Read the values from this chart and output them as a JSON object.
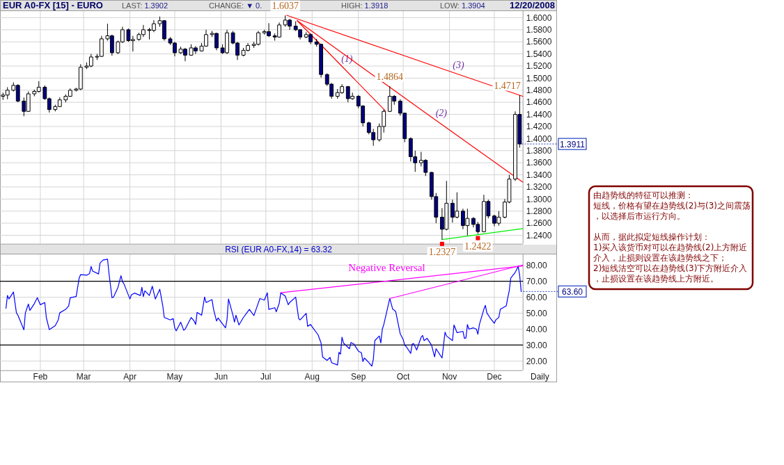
{
  "chart_data": [
    {
      "type": "candlestick",
      "title": "EUR A0-FX [15] - EURO",
      "annotations": [
        "LAST: 1.3902",
        "CHANGE: ▼ 0.",
        "HIGH: 1.3918",
        "LOW: 1.3904",
        "12/20/2008",
        {
          "text": "1.6037",
          "x": "2008-07-14",
          "y": 1.6037
        },
        {
          "text": "1.4864",
          "x": "2008-09-22",
          "y": 1.4864
        },
        {
          "text": "1.4717",
          "x": "2008-12-18",
          "y": 1.4717
        },
        {
          "text": "1.2327",
          "x": "2008-10-27",
          "y": 1.2327
        },
        {
          "text": "1.2422",
          "x": "2008-11-20",
          "y": 1.2422
        },
        {
          "text": "1.3911",
          "x": "2008-12-18",
          "y": 1.3911
        }
      ],
      "series": [
        {
          "type": "candlestick",
          "colors": [
            "#ffffff",
            "#ffffff",
            "#ffffff",
            "#000080",
            "#000080",
            "#ffffff",
            "#ffffff",
            "#ffffff",
            "#000080",
            "#000080",
            "#ffffff",
            "#ffffff",
            "#ffffff",
            "#ffffff",
            "#ffffff",
            "#ffffff",
            "#ffffff",
            "#ffffff",
            "#ffffff",
            "#ffffff",
            "#ffffff",
            "#000080",
            "#ffffff",
            "#ffffff",
            "#000080",
            "#ffffff",
            "#ffffff",
            "#ffffff",
            "#000080",
            "#ffffff",
            "#ffffff",
            "#000080",
            "#000080",
            "#000080",
            "#ffffff",
            "#000080",
            "#ffffff",
            "#000080",
            "#ffffff",
            "#ffffff",
            "#ffffff",
            "#000080",
            "#000080",
            "#ffffff",
            "#000080",
            "#000080",
            "#ffffff",
            "#ffffff",
            "#ffffff",
            "#ffffff",
            "#ffffff",
            "#000080",
            "#000080",
            "#ffffff",
            "#ffffff",
            "#000080",
            "#000080",
            "#000080",
            "#ffffff",
            "#000080",
            "#000080",
            "#000080",
            "#000080",
            "#000080",
            "#ffffff",
            "#ffffff",
            "#000080",
            "#ffffff",
            "#000080",
            "#000080",
            "#000080",
            "#000080",
            "#ffffff",
            "#ffffff",
            "#ffffff",
            "#000080",
            "#000080",
            "#000080",
            "#000080",
            "#000080",
            "#ffffff",
            "#000080",
            "#000080",
            "#000080",
            "#000080",
            "#ffffff",
            "#000080",
            "#ffffff",
            "#000080",
            "#ffffff",
            "#000080",
            "#000080",
            "#ffffff",
            "#000080",
            "#000080",
            "#ffffff",
            "#ffffff",
            "#ffffff",
            "#ffffff",
            "#000080"
          ],
          "x": [
            "2008-01-07",
            "2008-01-10",
            "2008-01-14",
            "2008-01-17",
            "2008-01-21",
            "2008-01-24",
            "2008-01-28",
            "2008-01-31",
            "2008-02-04",
            "2008-02-07",
            "2008-02-11",
            "2008-02-14",
            "2008-02-18",
            "2008-02-21",
            "2008-02-25",
            "2008-02-28",
            "2008-03-03",
            "2008-03-06",
            "2008-03-10",
            "2008-03-13",
            "2008-03-17",
            "2008-03-20",
            "2008-03-24",
            "2008-03-27",
            "2008-03-31",
            "2008-04-03",
            "2008-04-07",
            "2008-04-10",
            "2008-04-14",
            "2008-04-17",
            "2008-04-21",
            "2008-04-24",
            "2008-04-28",
            "2008-05-01",
            "2008-05-05",
            "2008-05-08",
            "2008-05-12",
            "2008-05-15",
            "2008-05-19",
            "2008-05-22",
            "2008-05-26",
            "2008-05-29",
            "2008-06-02",
            "2008-06-05",
            "2008-06-09",
            "2008-06-12",
            "2008-06-16",
            "2008-06-19",
            "2008-06-23",
            "2008-06-26",
            "2008-06-30",
            "2008-07-03",
            "2008-07-07",
            "2008-07-10",
            "2008-07-14",
            "2008-07-17",
            "2008-07-21",
            "2008-07-24",
            "2008-07-28",
            "2008-07-31",
            "2008-08-04",
            "2008-08-07",
            "2008-08-11",
            "2008-08-14",
            "2008-08-18",
            "2008-08-21",
            "2008-08-25",
            "2008-08-28",
            "2008-09-01",
            "2008-09-04",
            "2008-09-08",
            "2008-09-11",
            "2008-09-15",
            "2008-09-18",
            "2008-09-22",
            "2008-09-25",
            "2008-09-29",
            "2008-10-02",
            "2008-10-06",
            "2008-10-09",
            "2008-10-13",
            "2008-10-16",
            "2008-10-20",
            "2008-10-23",
            "2008-10-27",
            "2008-10-30",
            "2008-11-03",
            "2008-11-06",
            "2008-11-10",
            "2008-11-13",
            "2008-11-17",
            "2008-11-20",
            "2008-11-24",
            "2008-11-27",
            "2008-12-01",
            "2008-12-04",
            "2008-12-08",
            "2008-12-11",
            "2008-12-15",
            "2008-12-18"
          ],
          "ohlc": [
            [
              1.47,
              1.476,
              1.464,
              1.472
            ],
            [
              1.472,
              1.485,
              1.465,
              1.48
            ],
            [
              1.48,
              1.493,
              1.478,
              1.488
            ],
            [
              1.488,
              1.49,
              1.46,
              1.462
            ],
            [
              1.462,
              1.468,
              1.437,
              1.445
            ],
            [
              1.445,
              1.478,
              1.444,
              1.474
            ],
            [
              1.474,
              1.481,
              1.47,
              1.478
            ],
            [
              1.478,
              1.495,
              1.476,
              1.485
            ],
            [
              1.485,
              1.488,
              1.464,
              1.466
            ],
            [
              1.466,
              1.468,
              1.443,
              1.448
            ],
            [
              1.448,
              1.456,
              1.445,
              1.453
            ],
            [
              1.453,
              1.468,
              1.452,
              1.464
            ],
            [
              1.464,
              1.473,
              1.46,
              1.47
            ],
            [
              1.47,
              1.483,
              1.469,
              1.48
            ],
            [
              1.48,
              1.484,
              1.478,
              1.482
            ],
            [
              1.482,
              1.523,
              1.48,
              1.518
            ],
            [
              1.518,
              1.526,
              1.515,
              1.52
            ],
            [
              1.52,
              1.54,
              1.518,
              1.535
            ],
            [
              1.535,
              1.54,
              1.53,
              1.536
            ],
            [
              1.536,
              1.57,
              1.535,
              1.565
            ],
            [
              1.565,
              1.59,
              1.562,
              1.57
            ],
            [
              1.57,
              1.572,
              1.537,
              1.542
            ],
            [
              1.542,
              1.562,
              1.54,
              1.56
            ],
            [
              1.56,
              1.585,
              1.558,
              1.58
            ],
            [
              1.58,
              1.582,
              1.56,
              1.562
            ],
            [
              1.562,
              1.57,
              1.544,
              1.564
            ],
            [
              1.564,
              1.575,
              1.562,
              1.572
            ],
            [
              1.572,
              1.588,
              1.568,
              1.58
            ],
            [
              1.58,
              1.583,
              1.564,
              1.579
            ],
            [
              1.579,
              1.596,
              1.576,
              1.59
            ],
            [
              1.59,
              1.6019,
              1.585,
              1.595
            ],
            [
              1.595,
              1.596,
              1.562,
              1.565
            ],
            [
              1.565,
              1.568,
              1.555,
              1.558
            ],
            [
              1.558,
              1.56,
              1.536,
              1.542
            ],
            [
              1.542,
              1.552,
              1.54,
              1.548
            ],
            [
              1.548,
              1.55,
              1.528,
              1.538
            ],
            [
              1.538,
              1.556,
              1.537,
              1.55
            ],
            [
              1.55,
              1.553,
              1.54,
              1.545
            ],
            [
              1.545,
              1.558,
              1.544,
              1.553
            ],
            [
              1.553,
              1.58,
              1.552,
              1.572
            ],
            [
              1.572,
              1.578,
              1.568,
              1.574
            ],
            [
              1.574,
              1.575,
              1.546,
              1.55
            ],
            [
              1.55,
              1.556,
              1.54,
              1.542
            ],
            [
              1.542,
              1.58,
              1.54,
              1.575
            ],
            [
              1.575,
              1.578,
              1.556,
              1.558
            ],
            [
              1.558,
              1.56,
              1.53,
              1.538
            ],
            [
              1.538,
              1.55,
              1.536,
              1.546
            ],
            [
              1.546,
              1.558,
              1.544,
              1.554
            ],
            [
              1.554,
              1.56,
              1.55,
              1.556
            ],
            [
              1.556,
              1.578,
              1.554,
              1.575
            ],
            [
              1.575,
              1.58,
              1.572,
              1.577
            ],
            [
              1.577,
              1.591,
              1.568,
              1.57
            ],
            [
              1.57,
              1.574,
              1.562,
              1.568
            ],
            [
              1.568,
              1.592,
              1.567,
              1.588
            ],
            [
              1.588,
              1.6037,
              1.585,
              1.596
            ],
            [
              1.596,
              1.598,
              1.58,
              1.586
            ],
            [
              1.586,
              1.594,
              1.578,
              1.58
            ],
            [
              1.58,
              1.581,
              1.564,
              1.568
            ],
            [
              1.568,
              1.576,
              1.566,
              1.572
            ],
            [
              1.572,
              1.574,
              1.556,
              1.56
            ],
            [
              1.56,
              1.565,
              1.552,
              1.556
            ],
            [
              1.556,
              1.557,
              1.501,
              1.506
            ],
            [
              1.506,
              1.508,
              1.487,
              1.49
            ],
            [
              1.49,
              1.492,
              1.466,
              1.47
            ],
            [
              1.47,
              1.482,
              1.466,
              1.476
            ],
            [
              1.476,
              1.49,
              1.474,
              1.486
            ],
            [
              1.486,
              1.487,
              1.46,
              1.466
            ],
            [
              1.466,
              1.476,
              1.464,
              1.47
            ],
            [
              1.47,
              1.472,
              1.45,
              1.454
            ],
            [
              1.454,
              1.455,
              1.42,
              1.426
            ],
            [
              1.426,
              1.428,
              1.407,
              1.41
            ],
            [
              1.41,
              1.416,
              1.388,
              1.398
            ],
            [
              1.398,
              1.425,
              1.395,
              1.42
            ],
            [
              1.42,
              1.448,
              1.41,
              1.445
            ],
            [
              1.445,
              1.4864,
              1.444,
              1.47
            ],
            [
              1.47,
              1.472,
              1.456,
              1.462
            ],
            [
              1.462,
              1.465,
              1.438,
              1.442
            ],
            [
              1.442,
              1.443,
              1.394,
              1.4
            ],
            [
              1.4,
              1.402,
              1.362,
              1.37
            ],
            [
              1.37,
              1.38,
              1.345,
              1.36
            ],
            [
              1.36,
              1.378,
              1.354,
              1.364
            ],
            [
              1.364,
              1.366,
              1.338,
              1.344
            ],
            [
              1.344,
              1.345,
              1.299,
              1.304
            ],
            [
              1.304,
              1.31,
              1.26,
              1.27
            ],
            [
              1.27,
              1.285,
              1.2327,
              1.25
            ],
            [
              1.25,
              1.33,
              1.248,
              1.293
            ],
            [
              1.293,
              1.299,
              1.261,
              1.27
            ],
            [
              1.27,
              1.311,
              1.268,
              1.28
            ],
            [
              1.28,
              1.284,
              1.25,
              1.256
            ],
            [
              1.256,
              1.284,
              1.24,
              1.268
            ],
            [
              1.268,
              1.27,
              1.253,
              1.258
            ],
            [
              1.258,
              1.262,
              1.2422,
              1.246
            ],
            [
              1.246,
              1.307,
              1.245,
              1.296
            ],
            [
              1.296,
              1.299,
              1.268,
              1.272
            ],
            [
              1.272,
              1.274,
              1.255,
              1.26
            ],
            [
              1.26,
              1.28,
              1.256,
              1.27
            ],
            [
              1.27,
              1.3,
              1.268,
              1.295
            ],
            [
              1.295,
              1.34,
              1.293,
              1.333
            ],
            [
              1.333,
              1.445,
              1.33,
              1.44
            ],
            [
              1.44,
              1.4717,
              1.385,
              1.3911
            ]
          ]
        },
        {
          "type": "line",
          "name": "(1)",
          "color": "#ff0000",
          "x": [
            "2008-07-22",
            "2008-08-20",
            "2008-09-19"
          ],
          "values": [
            1.595,
            1.522,
            1.446
          ]
        },
        {
          "type": "line",
          "name": "(2)",
          "color": "#ff0000",
          "x": [
            "2008-07-22",
            "2008-10-23",
            "2008-12-20"
          ],
          "values": [
            1.595,
            1.43,
            1.328
          ]
        },
        {
          "type": "line",
          "name": "(3)",
          "color": "#ff0000",
          "x": [
            "2008-07-15",
            "2008-11-05",
            "2008-12-20"
          ],
          "values": [
            1.604,
            1.508,
            1.47
          ]
        },
        {
          "type": "line",
          "color": "#00ee00",
          "x": [
            "2008-10-27",
            "2008-12-20"
          ],
          "values": [
            1.233,
            1.251
          ]
        }
      ],
      "xlim": [
        "2008-01-05",
        "2008-12-20"
      ],
      "ylim": [
        1.226,
        1.612
      ],
      "xticks": [
        {
          "value": "2008-02-01",
          "label": null
        },
        {
          "value": "2008-03-01",
          "label": null
        },
        {
          "value": "2008-04-01",
          "label": null
        },
        {
          "value": "2008-05-01",
          "label": null
        },
        {
          "value": "2008-06-01",
          "label": null
        },
        {
          "value": "2008-07-01",
          "label": null
        },
        {
          "value": "2008-08-01",
          "label": null
        },
        {
          "value": "2008-09-01",
          "label": null
        },
        {
          "value": "2008-10-01",
          "label": null
        },
        {
          "value": "2008-11-01",
          "label": null
        },
        {
          "value": "2008-12-01",
          "label": null
        }
      ],
      "yticks": [
        {
          "value": 1.24,
          "label": "1.2400"
        },
        {
          "value": 1.26,
          "label": "1.2600"
        },
        {
          "value": 1.28,
          "label": "1.2800"
        },
        {
          "value": 1.3,
          "label": "1.3000"
        },
        {
          "value": 1.32,
          "label": "1.3200"
        },
        {
          "value": 1.34,
          "label": "1.3400"
        },
        {
          "value": 1.36,
          "label": "1.3600"
        },
        {
          "value": 1.38,
          "label": "1.3800"
        },
        {
          "value": 1.4,
          "label": "1.4000"
        },
        {
          "value": 1.42,
          "label": "1.4200"
        },
        {
          "value": 1.44,
          "label": "1.4400"
        },
        {
          "value": 1.46,
          "label": "1.4600"
        },
        {
          "value": 1.48,
          "label": "1.4800"
        },
        {
          "value": 1.5,
          "label": "1.5000"
        },
        {
          "value": 1.52,
          "label": "1.5200"
        },
        {
          "value": 1.54,
          "label": "1.5400"
        },
        {
          "value": 1.56,
          "label": "1.5600"
        },
        {
          "value": 1.58,
          "label": "1.5800"
        },
        {
          "value": 1.6,
          "label": "1.6000"
        }
      ],
      "grid": true,
      "tick_labels": "y"
    },
    {
      "type": "line",
      "title": "RSI (EUR A0-FX,14) = 63.32",
      "xlabel": "Daily",
      "series": [
        {
          "color": "#000000",
          "x": [
            "2008-01-05",
            "2008-12-20"
          ],
          "values": [
            70,
            70
          ]
        },
        {
          "color": "#000000",
          "x": [
            "2008-01-05",
            "2008-12-20"
          ],
          "values": [
            30,
            30
          ]
        },
        {
          "color": "#0000ff",
          "x": [
            "2008-01-09",
            "2008-01-10",
            "2008-01-11",
            "2008-01-14",
            "2008-01-16",
            "2008-01-17",
            "2008-01-21",
            "2008-01-22",
            "2008-01-24",
            "2008-01-25",
            "2008-01-28",
            "2008-01-30",
            "2008-02-01",
            "2008-02-04",
            "2008-02-05",
            "2008-02-07",
            "2008-02-11",
            "2008-02-13",
            "2008-02-14",
            "2008-02-18",
            "2008-02-20",
            "2008-02-21",
            "2008-02-25",
            "2008-02-27",
            "2008-02-28",
            "2008-03-03",
            "2008-03-05",
            "2008-03-06",
            "2008-03-07",
            "2008-03-11",
            "2008-03-12",
            "2008-03-14",
            "2008-03-17",
            "2008-03-18",
            "2008-03-20",
            "2008-03-21",
            "2008-03-24",
            "2008-03-26",
            "2008-03-27",
            "2008-03-28",
            "2008-04-01",
            "2008-04-02",
            "2008-04-04",
            "2008-04-08",
            "2008-04-09",
            "2008-04-10",
            "2008-04-11",
            "2008-04-14",
            "2008-04-16",
            "2008-04-18",
            "2008-04-21",
            "2008-04-23",
            "2008-04-24",
            "2008-04-28",
            "2008-04-30",
            "2008-05-01",
            "2008-05-02",
            "2008-05-05",
            "2008-05-07",
            "2008-05-08",
            "2008-05-12",
            "2008-05-14",
            "2008-05-15",
            "2008-05-16",
            "2008-05-19",
            "2008-05-21",
            "2008-05-22",
            "2008-05-26",
            "2008-05-27",
            "2008-05-29",
            "2008-05-30",
            "2008-06-04",
            "2008-06-05",
            "2008-06-06",
            "2008-06-09",
            "2008-06-10",
            "2008-06-11",
            "2008-06-13",
            "2008-06-16",
            "2008-06-18",
            "2008-06-20",
            "2008-06-23",
            "2008-06-25",
            "2008-06-27",
            "2008-06-30",
            "2008-07-02",
            "2008-07-03",
            "2008-07-07",
            "2008-07-08",
            "2008-07-10",
            "2008-07-11",
            "2008-07-14",
            "2008-07-16",
            "2008-07-17",
            "2008-07-21",
            "2008-07-23",
            "2008-07-24",
            "2008-07-28",
            "2008-07-29",
            "2008-07-31",
            "2008-08-01",
            "2008-08-05",
            "2008-08-07",
            "2008-08-08",
            "2008-08-11",
            "2008-08-13",
            "2008-08-14",
            "2008-08-18",
            "2008-08-19",
            "2008-08-20",
            "2008-08-21",
            "2008-08-22",
            "2008-08-26",
            "2008-08-27",
            "2008-08-29",
            "2008-09-01",
            "2008-09-03",
            "2008-09-04",
            "2008-09-05",
            "2008-09-08",
            "2008-09-10",
            "2008-09-11",
            "2008-09-12",
            "2008-09-15",
            "2008-09-16",
            "2008-09-17",
            "2008-09-18",
            "2008-09-22",
            "2008-09-24",
            "2008-09-25",
            "2008-09-26",
            "2008-09-29",
            "2008-10-01",
            "2008-10-02",
            "2008-10-03",
            "2008-10-06",
            "2008-10-07",
            "2008-10-08",
            "2008-10-10",
            "2008-10-13",
            "2008-10-14",
            "2008-10-15",
            "2008-10-17",
            "2008-10-20",
            "2008-10-22",
            "2008-10-23",
            "2008-10-27",
            "2008-10-28",
            "2008-10-29",
            "2008-10-30",
            "2008-11-03",
            "2008-11-04",
            "2008-11-06",
            "2008-11-10",
            "2008-11-11",
            "2008-11-12",
            "2008-11-13",
            "2008-11-14",
            "2008-11-17",
            "2008-11-19",
            "2008-11-20",
            "2008-11-21",
            "2008-11-24",
            "2008-11-25",
            "2008-11-26",
            "2008-11-28",
            "2008-12-01",
            "2008-12-02",
            "2008-12-03",
            "2008-12-04",
            "2008-12-05",
            "2008-12-09",
            "2008-12-10",
            "2008-12-11",
            "2008-12-12",
            "2008-12-15",
            "2008-12-17",
            "2008-12-18",
            "2008-12-19"
          ],
          "values": [
            53.1,
            61.1,
            58.9,
            63.3,
            50.2,
            48.7,
            39.6,
            50.2,
            55.7,
            51.7,
            56.0,
            59.7,
            55.3,
            56.7,
            47.3,
            39.7,
            42.2,
            45.8,
            50.2,
            52.4,
            54.6,
            59.7,
            60.4,
            72.0,
            74.2,
            73.8,
            74.9,
            79.3,
            76.4,
            74.6,
            81.5,
            83.3,
            83.9,
            74.9,
            59.7,
            60.1,
            66.2,
            73.5,
            69.8,
            68.4,
            58.9,
            61.5,
            62.6,
            61.1,
            66.2,
            60.4,
            64.0,
            61.1,
            66.9,
            58.9,
            65.0,
            54.6,
            47.3,
            45.8,
            46.6,
            40.8,
            38.9,
            44.4,
            39.3,
            40.0,
            47.3,
            45.1,
            42.9,
            50.5,
            48.7,
            60.1,
            56.7,
            58.5,
            52.4,
            45.1,
            47.0,
            40.8,
            45.8,
            58.9,
            48.7,
            44.4,
            48.7,
            42.6,
            47.3,
            49.9,
            52.4,
            48.5,
            53.8,
            59.2,
            58.2,
            62.8,
            52.4,
            53.4,
            50.9,
            56.3,
            62.8,
            60.7,
            55.3,
            56.7,
            60.1,
            46.6,
            45.8,
            49.9,
            41.8,
            42.9,
            41.5,
            36.4,
            31.3,
            22.6,
            20.4,
            22.3,
            19.0,
            17.5,
            25.5,
            24.3,
            34.9,
            31.3,
            27.7,
            31.6,
            30.6,
            26.2,
            25.2,
            19.7,
            21.9,
            19.0,
            16.8,
            21.1,
            32.8,
            35.7,
            31.3,
            40.0,
            42.9,
            59.2,
            52.4,
            51.9,
            50.9,
            37.1,
            33.5,
            29.9,
            29.1,
            24.8,
            30.6,
            30.9,
            26.9,
            34.9,
            36.0,
            32.8,
            34.2,
            29.9,
            22.6,
            27.7,
            21.9,
            29.9,
            38.1,
            35.7,
            32.8,
            42.6,
            37.8,
            38.6,
            34.2,
            34.5,
            42.9,
            40.0,
            40.8,
            40.0,
            36.8,
            42.9,
            52.4,
            54.9,
            50.2,
            47.3,
            43.7,
            45.8,
            46.6,
            47.3,
            52.4,
            54.6,
            59.7,
            64.0,
            72.0,
            75.6,
            79.3,
            73.5,
            63.6
          ]
        },
        {
          "color": "#ff00ff",
          "x": [
            "2008-07-11",
            "2008-12-20"
          ],
          "values": [
            62.8,
            79.6
          ]
        },
        {
          "color": "#ff00ff",
          "x": [
            "2008-09-22",
            "2008-12-20"
          ],
          "values": [
            59.2,
            80.2
          ]
        }
      ],
      "annotations": [
        "Negative Reversal",
        {
          "text": "63.60",
          "x": "2008-12-19",
          "y": 63.6
        }
      ],
      "xlim": [
        "2008-01-05",
        "2008-12-20"
      ],
      "ylim": [
        14.2,
        87.3
      ],
      "xticks": [
        {
          "value": "2008-02-01",
          "label": "Feb"
        },
        {
          "value": "2008-03-01",
          "label": "Mar"
        },
        {
          "value": "2008-04-01",
          "label": "Apr"
        },
        {
          "value": "2008-05-01",
          "label": "May"
        },
        {
          "value": "2008-06-01",
          "label": "Jun"
        },
        {
          "value": "2008-07-01",
          "label": "Jul"
        },
        {
          "value": "2008-08-01",
          "label": "Aug"
        },
        {
          "value": "2008-09-01",
          "label": "Sep"
        },
        {
          "value": "2008-10-01",
          "label": "Oct"
        },
        {
          "value": "2008-11-01",
          "label": "Nov"
        },
        {
          "value": "2008-12-01",
          "label": "Dec"
        }
      ],
      "yticks": [
        {
          "value": 20,
          "label": "20.00"
        },
        {
          "value": 30,
          "label": "30.00"
        },
        {
          "value": 40,
          "label": "40.00"
        },
        {
          "value": 50,
          "label": "50.00"
        },
        {
          "value": 60,
          "label": "60.00"
        },
        {
          "value": 70,
          "label": "70.00"
        },
        {
          "value": 80,
          "label": "80.00"
        }
      ],
      "grid": true
    },
    {
      "type": "other",
      "color": "#800000",
      "annotations": [
        "由趋势线的特征可以推测：",
        "短线，价格有望在趋势线(2)与(3)之间震荡，以选择后市运行方向。",
        "从而，据此拟定短线操作计划：",
        "1)买入该货币对可以在趋势线(2)上方附近介入，止损则设置在该趋势线之下；",
        "2)短线沽空可以在趋势线(3)下方附近介入，止损设置在该趋势线上方附近。"
      ]
    }
  ]
}
